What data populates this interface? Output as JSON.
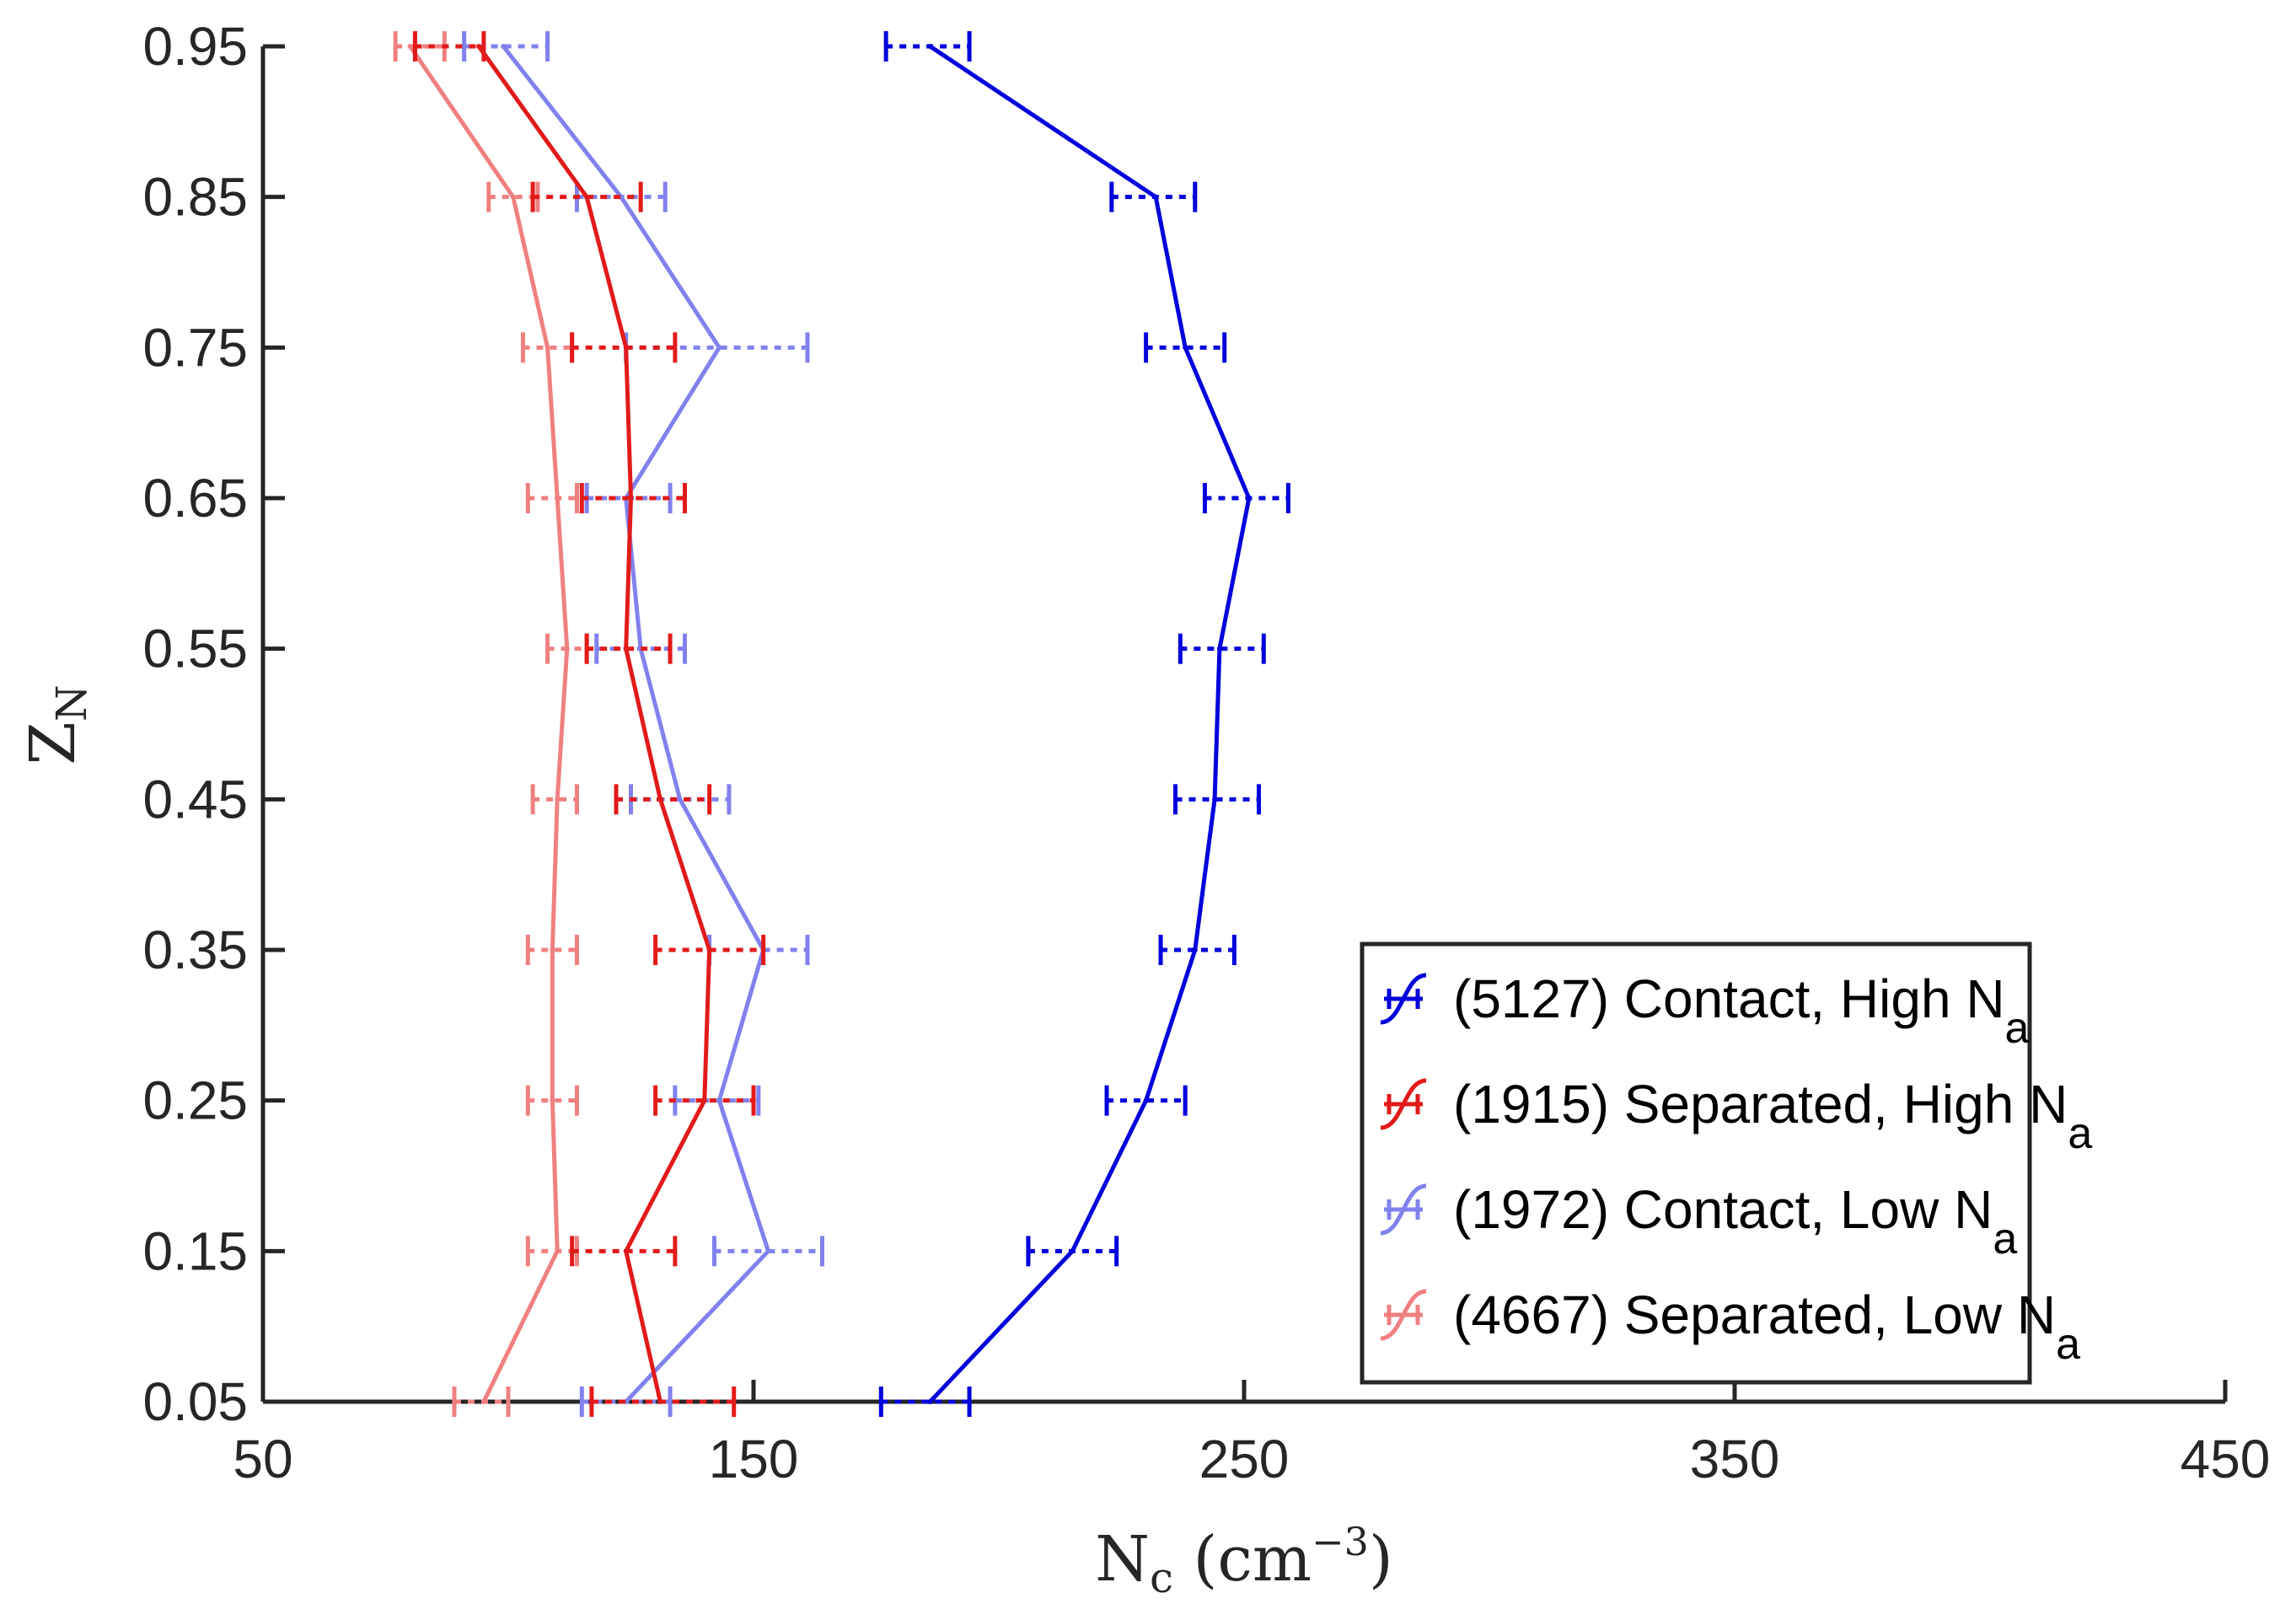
{
  "chart_data": {
    "type": "line",
    "orientation": "horizontal-errorbars",
    "xlabel": {
      "main": "N",
      "sub": "c",
      "unit": "(cm",
      "sup": "−3",
      "close": ")"
    },
    "ylabel": {
      "main": "Z",
      "sub": "N"
    },
    "xlim": [
      50,
      450
    ],
    "ylim": [
      0.05,
      0.95
    ],
    "xticks": [
      50,
      150,
      250,
      350,
      450
    ],
    "yticks": [
      0.05,
      0.15,
      0.25,
      0.35,
      0.45,
      0.55,
      0.65,
      0.75,
      0.85,
      0.95
    ],
    "x_tick_labels": [
      "50",
      "150",
      "250",
      "350",
      "450"
    ],
    "y_tick_labels": [
      "0.05",
      "0.15",
      "0.25",
      "0.35",
      "0.45",
      "0.55",
      "0.65",
      "0.75",
      "0.85",
      "0.95"
    ],
    "grid": false,
    "legend_position": "bottom-right",
    "y": [
      0.05,
      0.15,
      0.25,
      0.35,
      0.45,
      0.55,
      0.65,
      0.75,
      0.85,
      0.95
    ],
    "series": [
      {
        "key": "contact-high",
        "legend_main": "(5127) Contact, High N",
        "legend_sub": "a",
        "color": "#0000dd",
        "x": [
          186,
          215,
          230,
          240,
          244,
          245,
          251,
          238,
          232,
          186
        ],
        "xerr_low": [
          176,
          206,
          222,
          233,
          236,
          237,
          242,
          230,
          223,
          177
        ],
        "xerr_high": [
          194,
          224,
          238,
          248,
          253,
          254,
          259,
          246,
          240,
          194
        ]
      },
      {
        "key": "separated-high",
        "legend_main": "(1915) Separated, High N",
        "legend_sub": "a",
        "color": "#e21a1a",
        "x": [
          131,
          124,
          140,
          141,
          131,
          124,
          125,
          124,
          116,
          94
        ],
        "xerr_low": [
          117,
          113,
          130,
          130,
          122,
          116,
          115,
          113,
          105,
          81
        ],
        "xerr_high": [
          146,
          134,
          150,
          152,
          141,
          133,
          136,
          134,
          127,
          95
        ]
      },
      {
        "key": "contact-low",
        "legend_main": "(1972) Contact, Low N",
        "legend_sub": "a",
        "color": "#8181ee",
        "x": [
          124,
          153,
          143,
          152,
          135,
          127,
          124,
          143,
          123,
          99
        ],
        "xerr_low": [
          115,
          142,
          134,
          141,
          125,
          118,
          116,
          124,
          114,
          91
        ],
        "xerr_high": [
          133,
          164,
          151,
          161,
          145,
          136,
          133,
          161,
          132,
          108
        ]
      },
      {
        "key": "separated-low",
        "legend_main": "(4667) Separated, Low N",
        "legend_sub": "a",
        "color": "#f08080",
        "x": [
          95,
          110,
          109,
          109,
          110,
          112,
          110,
          108,
          101,
          80
        ],
        "xerr_low": [
          89,
          104,
          104,
          104,
          105,
          108,
          104,
          103,
          96,
          77
        ],
        "xerr_high": [
          100,
          114,
          114,
          114,
          114,
          116,
          114,
          113,
          106,
          87
        ]
      }
    ]
  }
}
